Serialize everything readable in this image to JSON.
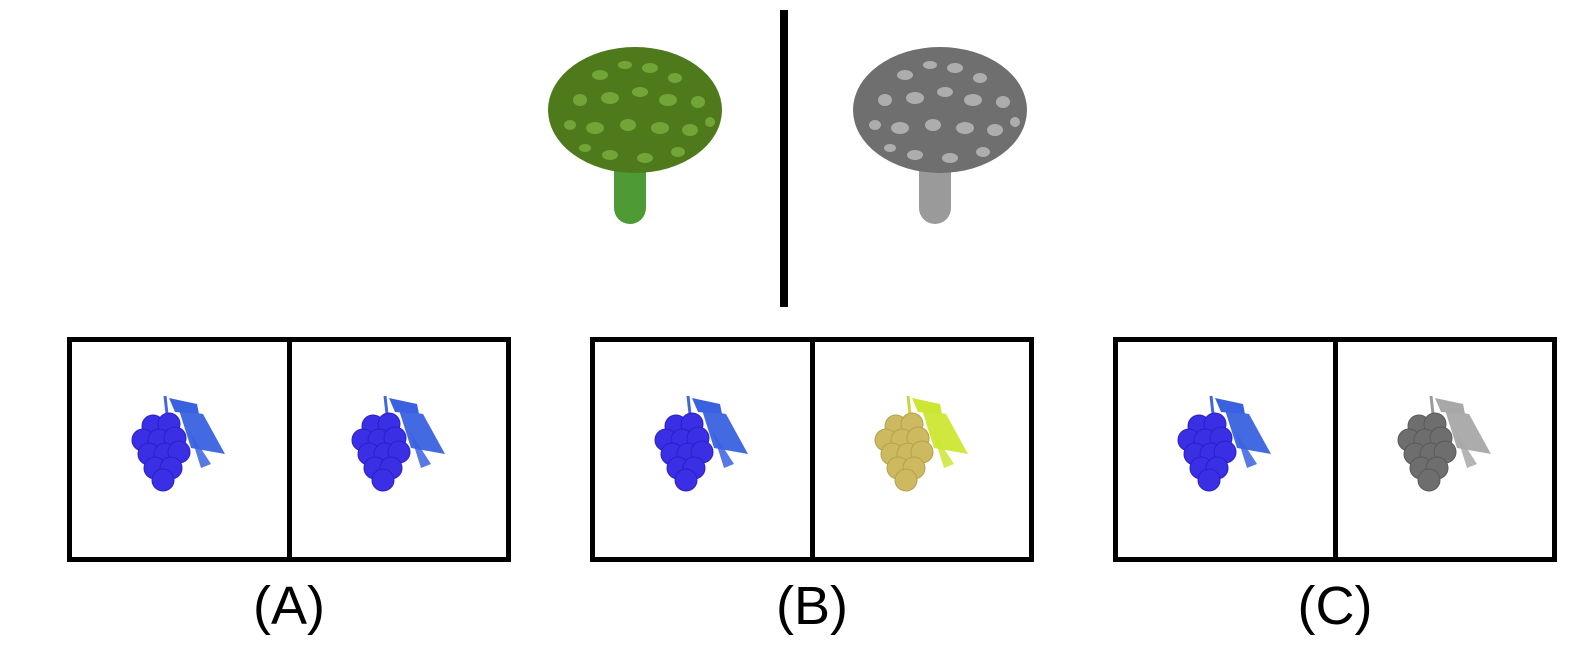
{
  "example": {
    "left_icon": "mushroom-green",
    "right_icon": "mushroom-grayscale",
    "colors": {
      "cap": "#4f7a1c",
      "spots": "#79ad3c",
      "stem": "#4e9a35",
      "gray_cap": "#6f6f6f",
      "gray_spots": "#b4b4b4",
      "gray_stem": "#9a9a9a"
    }
  },
  "options": [
    {
      "label": "(A)",
      "left_icon": "grapes-blue",
      "right_icon": "grapes-blue"
    },
    {
      "label": "(B)",
      "left_icon": "grapes-blue",
      "right_icon": "grapes-yellow"
    },
    {
      "label": "(C)",
      "left_icon": "grapes-blue",
      "right_icon": "grapes-grayscale"
    }
  ],
  "grape_colors": {
    "blue": {
      "berry": "#3b2fe6",
      "shade": "#2a1fc8",
      "leaf": "#3a62e0",
      "stem": "#4466dd"
    },
    "yellow": {
      "berry": "#cdb960",
      "shade": "#b6a24a",
      "leaf": "#cde634",
      "stem": "#c8d83a"
    },
    "gray": {
      "berry": "#6e6e6e",
      "shade": "#5a5a5a",
      "leaf": "#a8a8a8",
      "stem": "#9a9a9a"
    }
  }
}
